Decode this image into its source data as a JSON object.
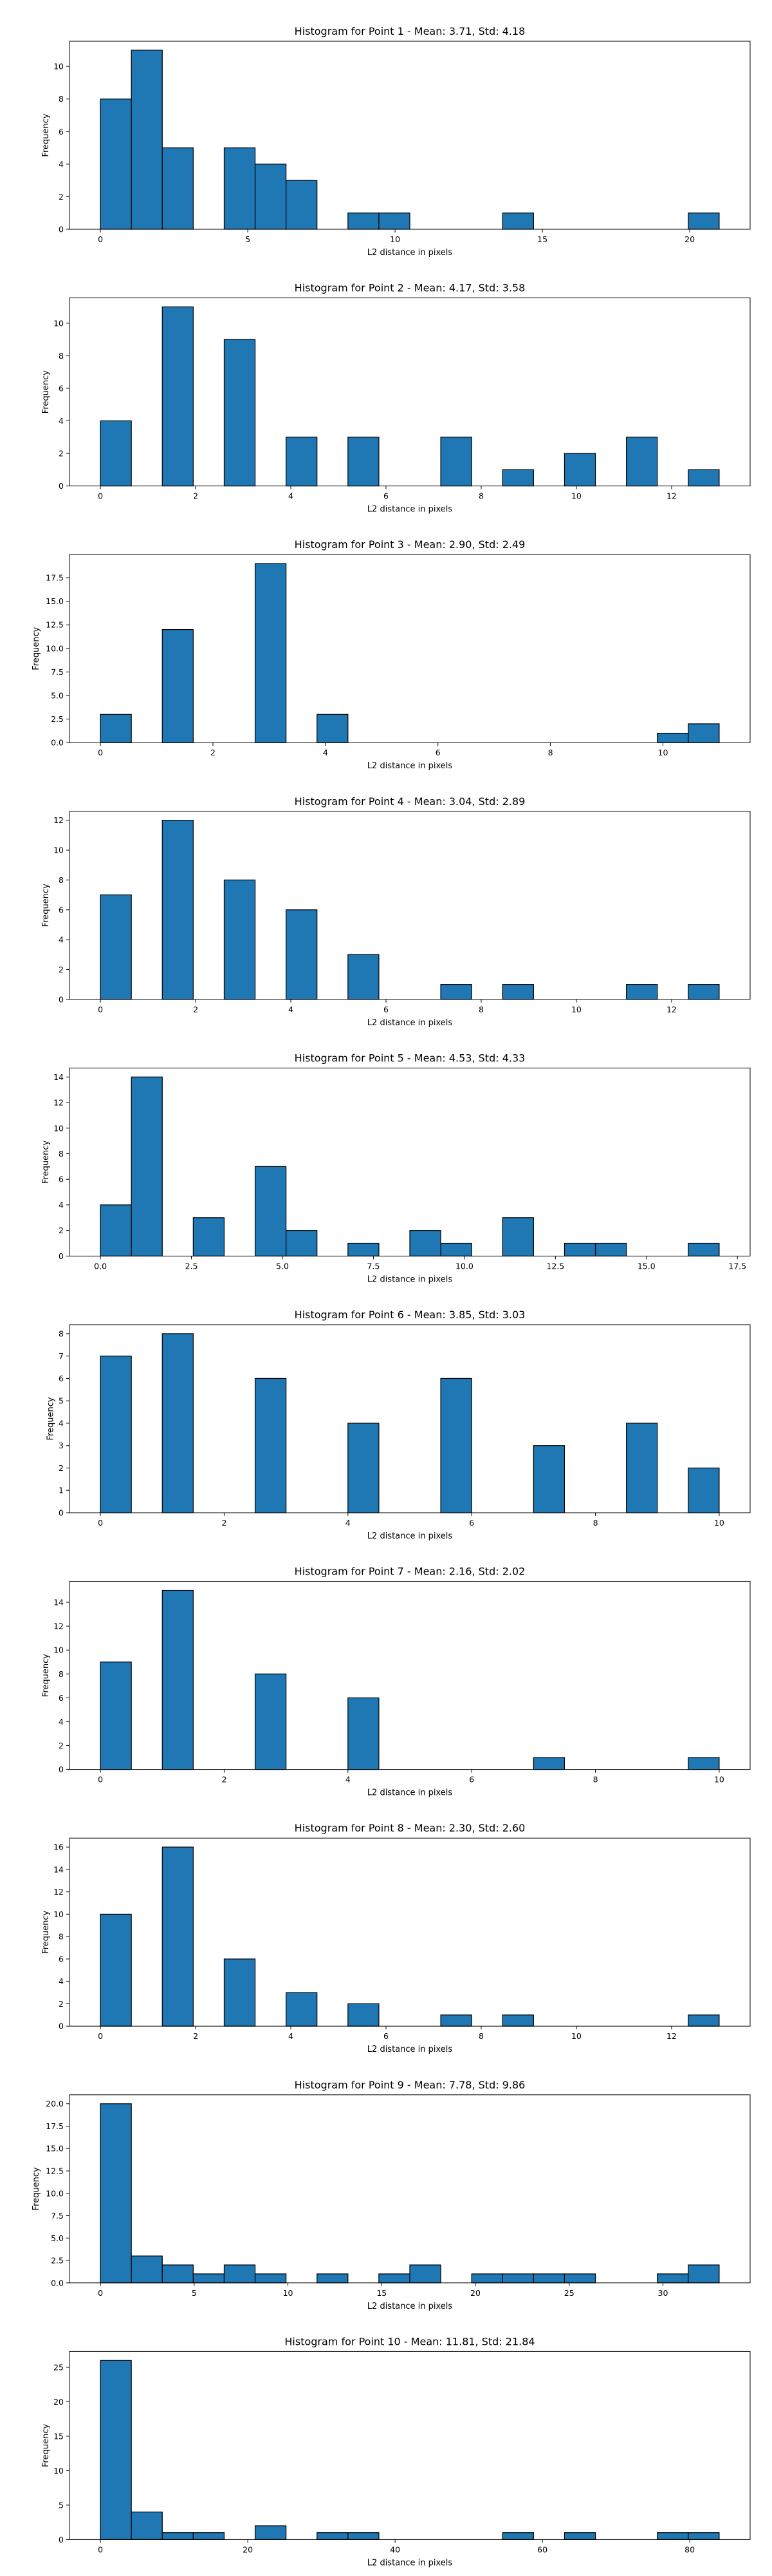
{
  "colors": {
    "bar_fill": "#1f77b4",
    "bar_edge": "#000000"
  },
  "chart_data": [
    {
      "type": "bar",
      "title": "Histogram for Point 1 - Mean: 3.71, Std: 4.18",
      "xlabel": "L2 distance in pixels",
      "ylabel": "Frequency",
      "xlim": [
        -1.05,
        22.05
      ],
      "ylim": [
        0,
        11.55
      ],
      "xticks": [
        0,
        5,
        10,
        15,
        20
      ],
      "yticks": [
        0,
        2,
        4,
        6,
        8,
        10
      ],
      "bins": [
        [
          0,
          1.05,
          8
        ],
        [
          1.05,
          2.1,
          11
        ],
        [
          2.1,
          3.15,
          5
        ],
        [
          4.2,
          5.25,
          5
        ],
        [
          5.25,
          6.3,
          4
        ],
        [
          6.3,
          7.35,
          3
        ],
        [
          8.4,
          9.45,
          1
        ],
        [
          9.45,
          10.5,
          1
        ],
        [
          13.65,
          14.7,
          1
        ],
        [
          19.95,
          21,
          1
        ]
      ]
    },
    {
      "type": "bar",
      "title": "Histogram for Point 2 - Mean: 4.17, Std: 3.58",
      "xlabel": "L2 distance in pixels",
      "ylabel": "Frequency",
      "xlim": [
        -0.65,
        13.65
      ],
      "ylim": [
        0,
        11.55
      ],
      "xticks": [
        0,
        2,
        4,
        6,
        8,
        10,
        12
      ],
      "yticks": [
        0,
        2,
        4,
        6,
        8,
        10
      ],
      "bins": [
        [
          0,
          0.65,
          4
        ],
        [
          1.3,
          1.95,
          11
        ],
        [
          2.6,
          3.25,
          9
        ],
        [
          3.9,
          4.55,
          3
        ],
        [
          5.2,
          5.85,
          3
        ],
        [
          7.15,
          7.8,
          3
        ],
        [
          8.45,
          9.1,
          1
        ],
        [
          9.75,
          10.4,
          2
        ],
        [
          11.05,
          11.7,
          3
        ],
        [
          12.35,
          13,
          1
        ]
      ]
    },
    {
      "type": "bar",
      "title": "Histogram for Point 3 - Mean: 2.90, Std: 2.49",
      "xlabel": "L2 distance in pixels",
      "ylabel": "Frequency",
      "xlim": [
        -0.55,
        11.55
      ],
      "ylim": [
        0,
        19.95
      ],
      "xticks": [
        0,
        2,
        4,
        6,
        8,
        10
      ],
      "yticks": [
        0,
        2.5,
        5,
        7.5,
        10,
        12.5,
        15,
        17.5
      ],
      "ytick_labels": [
        "0.0",
        "2.5",
        "5.0",
        "7.5",
        "10.0",
        "12.5",
        "15.0",
        "17.5"
      ],
      "bins": [
        [
          0,
          0.55,
          3
        ],
        [
          1.1,
          1.65,
          12
        ],
        [
          2.75,
          3.3,
          19
        ],
        [
          3.85,
          4.4,
          3
        ],
        [
          9.9,
          10.45,
          1
        ],
        [
          10.45,
          11,
          2
        ]
      ]
    },
    {
      "type": "bar",
      "title": "Histogram for Point 4 - Mean: 3.04, Std: 2.89",
      "xlabel": "L2 distance in pixels",
      "ylabel": "Frequency",
      "xlim": [
        -0.65,
        13.65
      ],
      "ylim": [
        0,
        12.6
      ],
      "xticks": [
        0,
        2,
        4,
        6,
        8,
        10,
        12
      ],
      "yticks": [
        0,
        2,
        4,
        6,
        8,
        10,
        12
      ],
      "bins": [
        [
          0,
          0.65,
          7
        ],
        [
          1.3,
          1.95,
          12
        ],
        [
          2.6,
          3.25,
          8
        ],
        [
          3.9,
          4.55,
          6
        ],
        [
          5.2,
          5.85,
          3
        ],
        [
          7.15,
          7.8,
          1
        ],
        [
          8.45,
          9.1,
          1
        ],
        [
          11.05,
          11.7,
          1
        ],
        [
          12.35,
          13,
          1
        ]
      ]
    },
    {
      "type": "bar",
      "title": "Histogram for Point 5 - Mean: 4.53, Std: 4.33",
      "xlabel": "L2 distance in pixels",
      "ylabel": "Frequency",
      "xlim": [
        -0.85,
        17.85
      ],
      "ylim": [
        0,
        14.7
      ],
      "xticks": [
        0,
        2.5,
        5,
        7.5,
        10,
        12.5,
        15,
        17.5
      ],
      "xtick_labels": [
        "0.0",
        "2.5",
        "5.0",
        "7.5",
        "10.0",
        "12.5",
        "15.0",
        "17.5"
      ],
      "yticks": [
        0,
        2,
        4,
        6,
        8,
        10,
        12,
        14
      ],
      "bins": [
        [
          0,
          0.85,
          4
        ],
        [
          0.85,
          1.7,
          14
        ],
        [
          2.55,
          3.4,
          3
        ],
        [
          4.25,
          5.1,
          7
        ],
        [
          5.1,
          5.95,
          2
        ],
        [
          6.8,
          7.65,
          1
        ],
        [
          8.5,
          9.35,
          2
        ],
        [
          9.35,
          10.2,
          1
        ],
        [
          11.05,
          11.9,
          3
        ],
        [
          12.75,
          13.6,
          1
        ],
        [
          13.6,
          14.45,
          1
        ],
        [
          16.15,
          17,
          1
        ]
      ]
    },
    {
      "type": "bar",
      "title": "Histogram for Point 6 - Mean: 3.85, Std: 3.03",
      "xlabel": "L2 distance in pixels",
      "ylabel": "Frequency",
      "xlim": [
        -0.5,
        10.5
      ],
      "ylim": [
        0,
        8.4
      ],
      "xticks": [
        0,
        2,
        4,
        6,
        8,
        10
      ],
      "yticks": [
        0,
        1,
        2,
        3,
        4,
        5,
        6,
        7,
        8
      ],
      "bins": [
        [
          0,
          0.5,
          7
        ],
        [
          1,
          1.5,
          8
        ],
        [
          2.5,
          3,
          6
        ],
        [
          4,
          4.5,
          4
        ],
        [
          5.5,
          6,
          6
        ],
        [
          7,
          7.5,
          3
        ],
        [
          8.5,
          9,
          4
        ],
        [
          9.5,
          10,
          2
        ]
      ]
    },
    {
      "type": "bar",
      "title": "Histogram for Point 7 - Mean: 2.16, Std: 2.02",
      "xlabel": "L2 distance in pixels",
      "ylabel": "Frequency",
      "xlim": [
        -0.5,
        10.5
      ],
      "ylim": [
        0,
        15.75
      ],
      "xticks": [
        0,
        2,
        4,
        6,
        8,
        10
      ],
      "yticks": [
        0,
        2,
        4,
        6,
        8,
        10,
        12,
        14
      ],
      "bins": [
        [
          0,
          0.5,
          9
        ],
        [
          1,
          1.5,
          15
        ],
        [
          2.5,
          3,
          8
        ],
        [
          4,
          4.5,
          6
        ],
        [
          7,
          7.5,
          1
        ],
        [
          9.5,
          10,
          1
        ]
      ]
    },
    {
      "type": "bar",
      "title": "Histogram for Point 8 - Mean: 2.30, Std: 2.60",
      "xlabel": "L2 distance in pixels",
      "ylabel": "Frequency",
      "xlim": [
        -0.65,
        13.65
      ],
      "ylim": [
        0,
        16.8
      ],
      "xticks": [
        0,
        2,
        4,
        6,
        8,
        10,
        12
      ],
      "yticks": [
        0,
        2,
        4,
        6,
        8,
        10,
        12,
        14,
        16
      ],
      "bins": [
        [
          0,
          0.65,
          10
        ],
        [
          1.3,
          1.95,
          16
        ],
        [
          2.6,
          3.25,
          6
        ],
        [
          3.9,
          4.55,
          3
        ],
        [
          5.2,
          5.85,
          2
        ],
        [
          7.15,
          7.8,
          1
        ],
        [
          8.45,
          9.1,
          1
        ],
        [
          12.35,
          13,
          1
        ]
      ]
    },
    {
      "type": "bar",
      "title": "Histogram for Point 9 - Mean: 7.78, Std: 9.86",
      "xlabel": "L2 distance in pixels",
      "ylabel": "Frequency",
      "xlim": [
        -1.65,
        34.65
      ],
      "ylim": [
        0,
        21
      ],
      "xticks": [
        0,
        5,
        10,
        15,
        20,
        25,
        30
      ],
      "yticks": [
        0,
        2.5,
        5,
        7.5,
        10,
        12.5,
        15,
        17.5,
        20
      ],
      "ytick_labels": [
        "0.0",
        "2.5",
        "5.0",
        "7.5",
        "10.0",
        "12.5",
        "15.0",
        "17.5",
        "20.0"
      ],
      "bins": [
        [
          0,
          1.65,
          20
        ],
        [
          1.65,
          3.3,
          3
        ],
        [
          3.3,
          4.95,
          2
        ],
        [
          4.95,
          6.6,
          1
        ],
        [
          6.6,
          8.25,
          2
        ],
        [
          8.25,
          9.9,
          1
        ],
        [
          11.55,
          13.2,
          1
        ],
        [
          14.85,
          16.5,
          1
        ],
        [
          16.5,
          18.15,
          2
        ],
        [
          19.8,
          21.45,
          1
        ],
        [
          21.45,
          23.1,
          1
        ],
        [
          23.1,
          24.75,
          1
        ],
        [
          24.75,
          26.4,
          1
        ],
        [
          29.7,
          31.35,
          1
        ],
        [
          31.35,
          33,
          2
        ]
      ]
    },
    {
      "type": "bar",
      "title": "Histogram for Point 10 - Mean: 11.81, Std: 21.84",
      "xlabel": "L2 distance in pixels",
      "ylabel": "Frequency",
      "xlim": [
        -4.2,
        88.2
      ],
      "ylim": [
        0,
        27.3
      ],
      "xticks": [
        0,
        20,
        40,
        60,
        80
      ],
      "yticks": [
        0,
        5,
        10,
        15,
        20,
        25
      ],
      "bins": [
        [
          0,
          4.2,
          26
        ],
        [
          4.2,
          8.4,
          4
        ],
        [
          8.4,
          12.6,
          1
        ],
        [
          12.6,
          16.8,
          1
        ],
        [
          21,
          25.2,
          2
        ],
        [
          29.4,
          33.6,
          1
        ],
        [
          33.6,
          37.8,
          1
        ],
        [
          54.6,
          58.8,
          1
        ],
        [
          63,
          67.2,
          1
        ],
        [
          75.6,
          79.8,
          1
        ],
        [
          79.8,
          84,
          1
        ]
      ]
    }
  ]
}
